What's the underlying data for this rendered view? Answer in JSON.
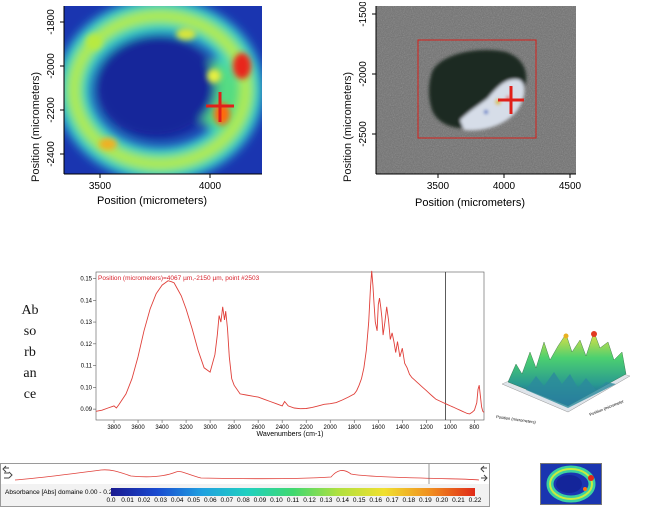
{
  "chart_data": [
    {
      "type": "heatmap",
      "xlabel": "Position (micrometers)",
      "ylabel": "Position (micrometers)",
      "x_ticks": [
        "3500",
        "4000"
      ],
      "y_ticks": [
        "-1800",
        "-2000",
        "-2200",
        "-2400"
      ],
      "marker": {
        "x": 4067,
        "y": -2150
      },
      "colors": {
        "low": "#1a2fa8",
        "mid": "#2ad4a0",
        "high": "#ff2a10",
        "marker": "#e0201a"
      }
    },
    {
      "type": "image",
      "xlabel": "Position (micrometers)",
      "ylabel": "Position (micrometers)",
      "x_ticks": [
        "3500",
        "4000",
        "4500"
      ],
      "y_ticks": [
        "-1500",
        "-2000",
        "-2500"
      ],
      "marker": {
        "x": 4067,
        "y": -2150
      }
    },
    {
      "type": "line",
      "title": "Position (micrometers)=4067 µm,-2150 µm, point #2503",
      "xlabel": "Wavenumbers (cm-1)",
      "ylabel": "Absorbance",
      "x_ticks": [
        "3800",
        "3600",
        "3400",
        "3200",
        "3000",
        "2800",
        "2600",
        "2400",
        "2200",
        "2000",
        "1800",
        "1600",
        "1400",
        "1200",
        "1000",
        "800"
      ],
      "y_ticks": [
        "0.09",
        "0.10",
        "0.11",
        "0.12",
        "0.13",
        "0.14",
        "0.15"
      ],
      "xlim": [
        3950,
        720
      ],
      "ylim": [
        0.085,
        0.153
      ],
      "cursor_x": 1040,
      "series": [
        {
          "color": "#e0403a",
          "x": [
            3950,
            3900,
            3850,
            3800,
            3780,
            3760,
            3700,
            3650,
            3600,
            3550,
            3500,
            3450,
            3400,
            3350,
            3320,
            3300,
            3270,
            3240,
            3200,
            3150,
            3100,
            3050,
            3000,
            2960,
            2940,
            2925,
            2910,
            2895,
            2880,
            2870,
            2855,
            2840,
            2820,
            2800,
            2750,
            2700,
            2650,
            2600,
            2550,
            2500,
            2450,
            2400,
            2380,
            2350,
            2300,
            2250,
            2200,
            2150,
            2100,
            2050,
            2000,
            1950,
            1900,
            1850,
            1800,
            1780,
            1760,
            1740,
            1720,
            1700,
            1680,
            1665,
            1655,
            1645,
            1635,
            1625,
            1610,
            1600,
            1590,
            1580,
            1570,
            1560,
            1545,
            1530,
            1515,
            1500,
            1485,
            1470,
            1455,
            1440,
            1420,
            1400,
            1380,
            1360,
            1340,
            1320,
            1300,
            1280,
            1260,
            1240,
            1220,
            1200,
            1180,
            1160,
            1140,
            1120,
            1100,
            1080,
            1060,
            1040,
            1020,
            1000,
            980,
            960,
            940,
            920,
            900,
            880,
            860,
            840,
            820,
            800,
            780,
            770,
            760,
            750,
            740,
            730,
            720
          ],
          "y": [
            0.089,
            0.0895,
            0.0905,
            0.0915,
            0.0905,
            0.092,
            0.097,
            0.104,
            0.114,
            0.126,
            0.136,
            0.143,
            0.147,
            0.149,
            0.1485,
            0.148,
            0.145,
            0.142,
            0.136,
            0.127,
            0.117,
            0.109,
            0.107,
            0.115,
            0.124,
            0.133,
            0.13,
            0.137,
            0.131,
            0.135,
            0.127,
            0.114,
            0.104,
            0.101,
            0.097,
            0.0965,
            0.096,
            0.0955,
            0.0945,
            0.0935,
            0.0925,
            0.0915,
            0.0935,
            0.0915,
            0.0905,
            0.0902,
            0.0903,
            0.0908,
            0.0915,
            0.0922,
            0.0925,
            0.093,
            0.0942,
            0.0955,
            0.097,
            0.0985,
            0.101,
            0.104,
            0.109,
            0.117,
            0.13,
            0.146,
            0.1535,
            0.147,
            0.138,
            0.13,
            0.126,
            0.138,
            0.141,
            0.137,
            0.132,
            0.124,
            0.13,
            0.137,
            0.131,
            0.122,
            0.125,
            0.121,
            0.116,
            0.121,
            0.114,
            0.118,
            0.111,
            0.109,
            0.106,
            0.1045,
            0.1035,
            0.1025,
            0.1015,
            0.1005,
            0.0995,
            0.0985,
            0.0975,
            0.0965,
            0.0955,
            0.0945,
            0.094,
            0.0935,
            0.093,
            0.0925,
            0.092,
            0.0915,
            0.091,
            0.0905,
            0.09,
            0.0895,
            0.089,
            0.0885,
            0.088,
            0.0878,
            0.0885,
            0.0895,
            0.093,
            0.099,
            0.101,
            0.096,
            0.091,
            0.089,
            0.0885
          ]
        }
      ]
    },
    {
      "type": "surface",
      "xlabel": "Position (micrometers)",
      "ylabel": "Position (micrometer"
    }
  ],
  "side_label": {
    "text_lines": [
      "Ab",
      "so",
      "rb",
      "an",
      "ce"
    ]
  },
  "colorbar": {
    "label": "Absorbance [Abs] domaine 0.00 - 0.23",
    "ticks": [
      "0.0",
      "0.01",
      "0.02",
      "0.03",
      "0.04",
      "0.05",
      "0.06",
      "0.07",
      "0.08",
      "0.09",
      "0.10",
      "0.11",
      "0.12",
      "0.13",
      "0.14",
      "0.15",
      "0.16",
      "0.17",
      "0.18",
      "0.19",
      "0.20",
      "0.21",
      "0.22"
    ]
  }
}
